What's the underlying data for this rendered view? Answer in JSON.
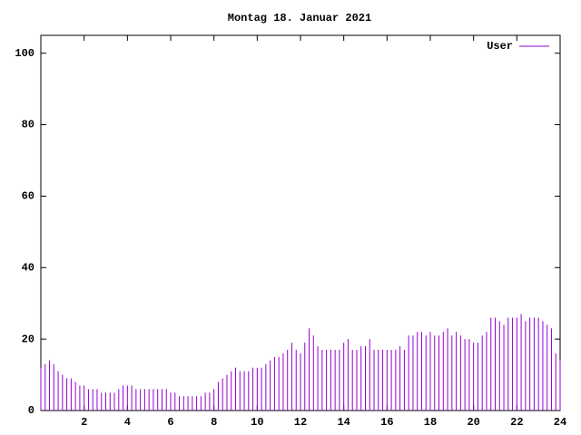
{
  "chart_data": {
    "type": "impulse",
    "title": "Montag 18. Januar 2021",
    "x": [
      0,
      0.2,
      0.4,
      0.6,
      0.8,
      1,
      1.2,
      1.4,
      1.6,
      1.8,
      2,
      2.2,
      2.4,
      2.6,
      2.8,
      3,
      3.2,
      3.4,
      3.6,
      3.8,
      4,
      4.2,
      4.4,
      4.6,
      4.8,
      5,
      5.2,
      5.4,
      5.6,
      5.8,
      6,
      6.2,
      6.4,
      6.6,
      6.8,
      7,
      7.2,
      7.4,
      7.6,
      7.8,
      8,
      8.2,
      8.4,
      8.6,
      8.8,
      9,
      9.2,
      9.4,
      9.6,
      9.8,
      10,
      10.2,
      10.4,
      10.6,
      10.8,
      11,
      11.2,
      11.4,
      11.6,
      11.8,
      12,
      12.2,
      12.4,
      12.6,
      12.8,
      13,
      13.2,
      13.4,
      13.6,
      13.8,
      14,
      14.2,
      14.4,
      14.6,
      14.8,
      15,
      15.2,
      15.4,
      15.6,
      15.8,
      16,
      16.2,
      16.4,
      16.6,
      16.8,
      17,
      17.2,
      17.4,
      17.6,
      17.8,
      18,
      18.2,
      18.4,
      18.6,
      18.8,
      19,
      19.2,
      19.4,
      19.6,
      19.8,
      20,
      20.2,
      20.4,
      20.6,
      20.8,
      21,
      21.2,
      21.4,
      21.6,
      21.8,
      22,
      22.2,
      22.4,
      22.6,
      22.8,
      23,
      23.2,
      23.4,
      23.6,
      23.8,
      24
    ],
    "series": [
      {
        "name": "User",
        "color": "#9400d3",
        "values": [
          12,
          13,
          14,
          13,
          11,
          10,
          9,
          9,
          8,
          7,
          7,
          6,
          6,
          6,
          5,
          5,
          5,
          5,
          6,
          7,
          7,
          7,
          6,
          6,
          6,
          6,
          6,
          6,
          6,
          6,
          5,
          5,
          4,
          4,
          4,
          4,
          4,
          4,
          5,
          5,
          6,
          8,
          9,
          10,
          11,
          12,
          11,
          11,
          11,
          12,
          12,
          12,
          13,
          14,
          15,
          15,
          16,
          17,
          19,
          17,
          16,
          19,
          23,
          21,
          18,
          17,
          17,
          17,
          17,
          17,
          19,
          20,
          17,
          17,
          18,
          18,
          20,
          17,
          17,
          17,
          17,
          17,
          17,
          18,
          17,
          21,
          21,
          22,
          22,
          21,
          22,
          21,
          21,
          22,
          23,
          21,
          22,
          21,
          20,
          20,
          19,
          19,
          21,
          22,
          26,
          26,
          25,
          24,
          26,
          26,
          26,
          27,
          25,
          26,
          26,
          26,
          25,
          24,
          23,
          16,
          14
        ]
      }
    ],
    "xlim": [
      0,
      24
    ],
    "xticks": [
      2,
      4,
      6,
      8,
      10,
      12,
      14,
      16,
      18,
      20,
      22,
      24
    ],
    "ylim": [
      0,
      105
    ],
    "yticks": [
      0,
      20,
      40,
      60,
      80,
      100
    ],
    "legend": "top-right"
  }
}
